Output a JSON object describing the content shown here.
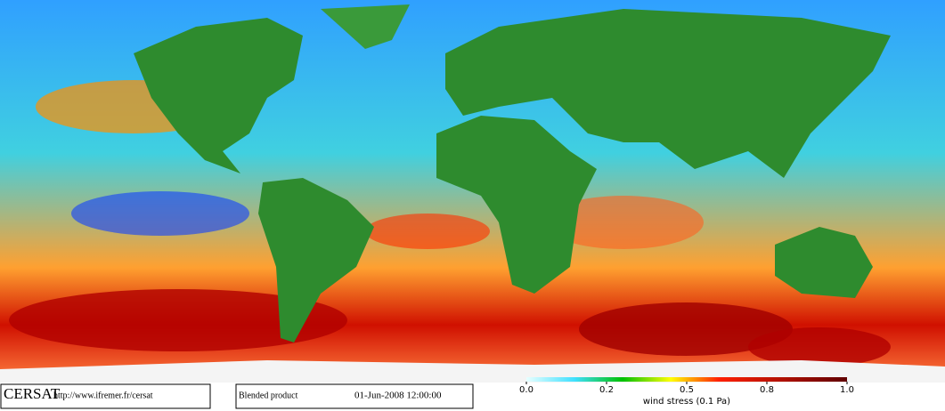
{
  "map": {
    "logo": "CERSAT",
    "url": "http://www.ifremer.fr/cersat",
    "product": "Blended product",
    "datetime": "01-Jun-2008 12:00:00"
  },
  "colorbar": {
    "label": "wind stress (0.1 Pa)",
    "lim": [
      0,
      1
    ],
    "ticks": [
      {
        "value": 0,
        "label": "0.0"
      },
      {
        "value": 0.25,
        "label": "0.2"
      },
      {
        "value": 0.5,
        "label": "0.5"
      },
      {
        "value": 0.75,
        "label": "0.8"
      },
      {
        "value": 1,
        "label": "1.0"
      }
    ]
  }
}
